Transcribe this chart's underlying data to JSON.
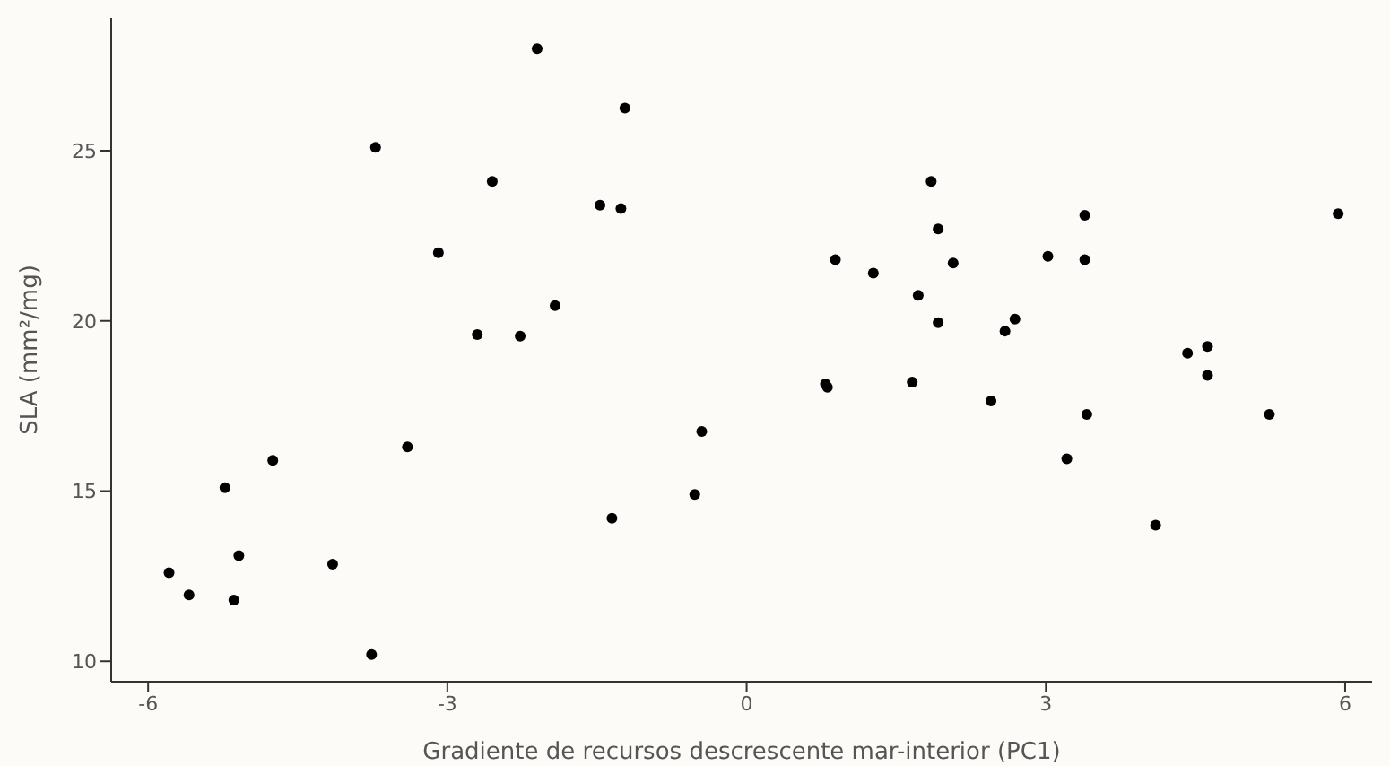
{
  "chart_data": {
    "type": "scatter",
    "xlabel": "Gradiente de recursos descrescente mar-interior (PC1)",
    "ylabel": "SLA (mm²/mg)",
    "x": [
      -5.79,
      -5.59,
      -5.23,
      -5.14,
      -5.09,
      -4.75,
      -4.15,
      -3.76,
      -3.72,
      -3.4,
      -3.09,
      -2.7,
      -2.55,
      -2.27,
      -2.1,
      -1.92,
      -1.47,
      -1.35,
      -1.26,
      -1.22,
      -0.52,
      -0.45,
      0.79,
      0.81,
      0.89,
      1.27,
      1.66,
      1.72,
      1.85,
      1.92,
      1.92,
      2.07,
      2.45,
      2.59,
      2.69,
      3.02,
      3.21,
      3.39,
      3.39,
      3.41,
      4.1,
      4.42,
      4.62,
      4.62,
      5.24,
      5.93
    ],
    "values": [
      12.6,
      11.95,
      15.1,
      11.8,
      13.1,
      15.9,
      12.85,
      10.2,
      25.1,
      16.3,
      22.0,
      19.6,
      24.1,
      19.55,
      28.0,
      20.45,
      23.4,
      14.2,
      23.3,
      26.25,
      14.9,
      16.75,
      18.15,
      18.05,
      21.8,
      21.4,
      18.2,
      20.75,
      24.1,
      22.7,
      19.95,
      21.7,
      17.65,
      19.7,
      20.05,
      21.9,
      15.95,
      23.1,
      21.8,
      17.25,
      14.0,
      19.05,
      19.25,
      18.4,
      17.25,
      23.15
    ],
    "color": "#000000",
    "marker": "circle",
    "xlim": [
      -6.37,
      6.27
    ],
    "ylim": [
      9.4,
      28.9
    ],
    "xticks": [
      -6,
      -3,
      0,
      3,
      6
    ],
    "yticks": [
      10,
      15,
      20,
      25
    ],
    "grid": false
  }
}
